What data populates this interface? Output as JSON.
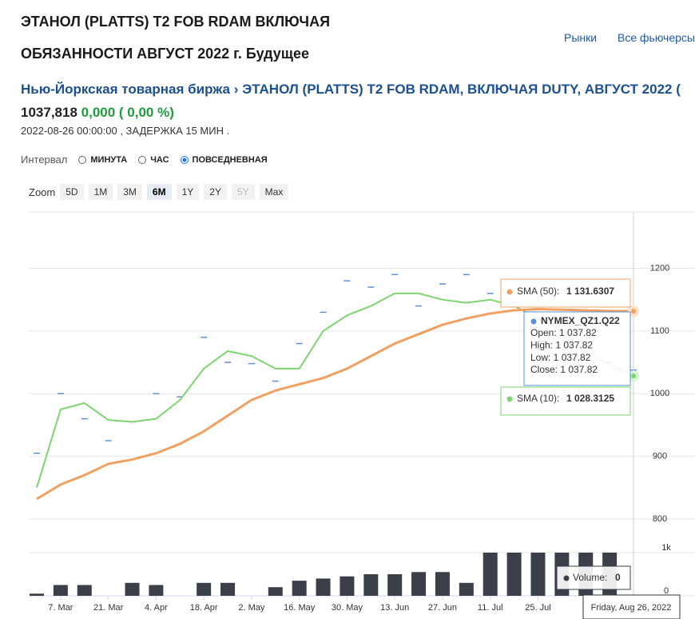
{
  "header": {
    "title_lines": [
      "ЭТАНОЛ (PLATTS) T2 FOB RDAM ВКЛЮЧАЯ",
      "ОБЯЗАННОСТИ АВГУСТ 2022 г. Будущее"
    ],
    "links": [
      "Рынки",
      "Все фьючерсы"
    ]
  },
  "breadcrumb": {
    "exchange": "Нью-Йоркская товарная биржа",
    "separator": "›",
    "instrument": "ЭТАНОЛ (PLATTS) T2 FOB RDAM, ВКЛЮЧАЯ DUTY, АВГУСТ 2022 ("
  },
  "quote": {
    "price": "1037,818",
    "change": "0,000 ( 0,00 %)",
    "timestamp": "2022-08-26 00:00:00 , ЗАДЕРЖКА 15 МИН ."
  },
  "interval": {
    "label": "Интервал",
    "options": [
      "МИНУТА",
      "ЧАС",
      "ПОВСЕДНЕВНАЯ"
    ],
    "selected": 2
  },
  "zoom": {
    "label": "Zoom",
    "buttons": [
      "5D",
      "1M",
      "3M",
      "6M",
      "1Y",
      "2Y",
      "5Y",
      "Max"
    ],
    "active": 3,
    "disabled": [
      6
    ]
  },
  "chart_data": {
    "type": "line",
    "categories": [
      null,
      "7. Mar",
      null,
      "21. Mar",
      null,
      "4. Apr",
      null,
      "18. Apr",
      null,
      "2. May",
      null,
      "16. May",
      null,
      "30. May",
      null,
      "13. Jun",
      null,
      "27. Jun",
      null,
      "11. Jul",
      null,
      "25. Jul",
      null,
      null,
      null,
      null
    ],
    "series": [
      {
        "name": "NYMEX_QZ1.Q22",
        "color": "#5b8fd8",
        "style": "dash",
        "values": [
          905,
          1000,
          960,
          925,
          955,
          1000,
          995,
          1090,
          1050,
          1048,
          1020,
          1080,
          1130,
          1180,
          1170,
          1190,
          1140,
          1175,
          1190,
          1160,
          1145,
          1120,
          1100,
          1080,
          1050,
          1037.818
        ]
      },
      {
        "name": "SMA (10)",
        "color": "#7ed46f",
        "style": "line",
        "values": [
          850,
          975,
          985,
          958,
          955,
          960,
          990,
          1040,
          1068,
          1060,
          1040,
          1040,
          1100,
          1125,
          1140,
          1160,
          1160,
          1150,
          1145,
          1150,
          1140,
          1120,
          1100,
          1070,
          1045,
          1028.3125
        ]
      },
      {
        "name": "SMA (50)",
        "color": "#f0a060",
        "style": "line",
        "values": [
          832,
          855,
          870,
          888,
          895,
          905,
          920,
          940,
          965,
          990,
          1005,
          1015,
          1025,
          1040,
          1060,
          1080,
          1095,
          1110,
          1120,
          1128,
          1133,
          1135,
          1134,
          1133,
          1132,
          1131.6307
        ]
      },
      {
        "name": "Volume",
        "color": "#3a3f4a",
        "style": "bar",
        "axis": "y2",
        "values": [
          50,
          250,
          250,
          0,
          300,
          250,
          0,
          300,
          300,
          0,
          200,
          350,
          400,
          450,
          500,
          500,
          550,
          550,
          300,
          1000,
          1000,
          1000,
          1000,
          1000,
          1000,
          0
        ]
      }
    ],
    "ylim": [
      800,
      1290
    ],
    "yticks": [
      800,
      900,
      1000,
      1100,
      1200
    ],
    "y2lim": [
      0,
      1000
    ],
    "y2ticks": [
      0,
      {
        "value": 1000,
        "label": "1k"
      }
    ],
    "grid": true,
    "crosshair_label": "Friday, Aug 26, 2022",
    "tooltip": {
      "sma50": {
        "label": "SMA (50):",
        "value": "1 131.6307"
      },
      "ohlc": {
        "title": "NYMEX_QZ1.Q22",
        "rows": [
          "Open: 1 037.82",
          "High: 1 037.82",
          "Low: 1 037.82",
          "Close: 1 037.82"
        ]
      },
      "sma10": {
        "label": "SMA (10):",
        "value": "1 028.3125"
      },
      "volume": {
        "label": "Volume:",
        "value": "0"
      }
    }
  }
}
